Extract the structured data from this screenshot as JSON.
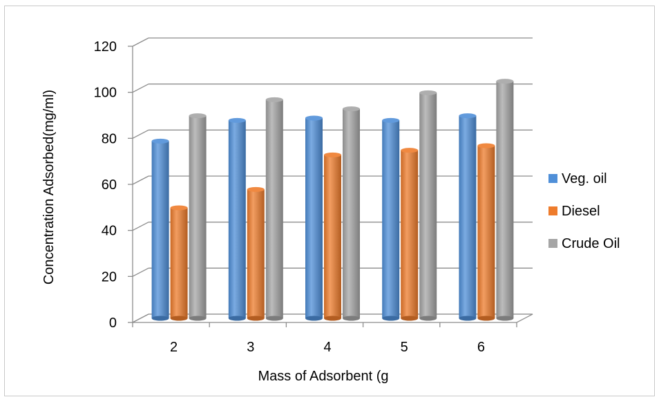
{
  "chart_data": {
    "type": "bar",
    "style": "3d-cylinder",
    "categories": [
      "2",
      "3",
      "4",
      "5",
      "6"
    ],
    "series": [
      {
        "name": "Veg. oil",
        "color": "#4f8fd8",
        "values": [
          77,
          86,
          87,
          86,
          88
        ]
      },
      {
        "name": "Diesel",
        "color": "#ee7c2c",
        "values": [
          48,
          56,
          71,
          73,
          75
        ]
      },
      {
        "name": "Crude Oil",
        "color": "#a5a5a5",
        "values": [
          88,
          95,
          91,
          98,
          103
        ]
      }
    ],
    "xlabel": "Mass of Adsorbent (g",
    "ylabel": "Concentration Adsorbed(mg/ml)",
    "ylim": [
      0,
      120
    ],
    "yticks": [
      "0",
      "20",
      "40",
      "60",
      "80",
      "100",
      "120"
    ],
    "grid": true,
    "legend_position": "right"
  }
}
